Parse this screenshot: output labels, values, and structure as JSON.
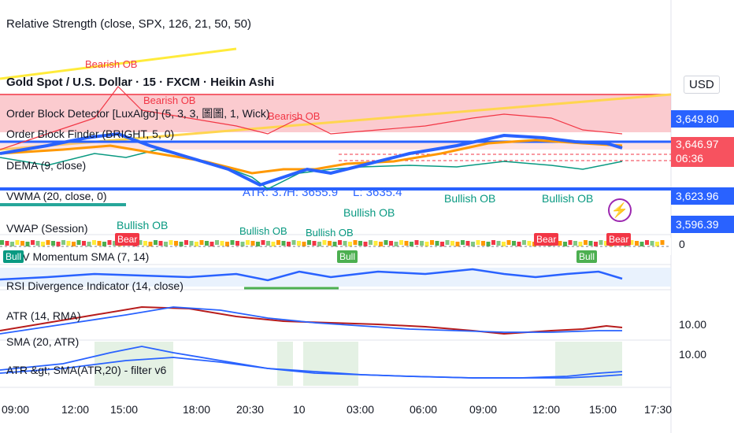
{
  "header": {
    "relative_strength": "Relative Strength (close, SPX, 126, 21, 50, 50)",
    "symbol": "Gold Spot / U.S. Dollar · 15 · FXCM · Heikin Ashi",
    "currency": "USD"
  },
  "indicators": {
    "order_block_luxalgo": "Order Block Detector [LuxAlgo] (5, 3, 3, 圖圖, 1, Wick)",
    "order_block_finder": "Order Block Finder (BRIGHT, 5, 0)",
    "dema": "DEMA (9, close)",
    "vwma": "VWMA (20, close, 0)",
    "vwap": "VWAP (Session)",
    "obv": "OBV Momentum SMA (7, 14)",
    "rsi_div": "RSI Divergence Indicator (14, close)",
    "atr": "ATR (14, RMA)",
    "sma_atr": "SMA (20, ATR)",
    "atr_filter": "ATR &gt; SMA(ATR,20) - filter v6"
  },
  "price_scale": {
    "p1": "3,649.80",
    "p2": "3,646.97",
    "countdown": "06:36",
    "p3": "3,623.96",
    "p4": "3,596.39",
    "zero": "0",
    "atr1": "10.00",
    "atr2": "10.00"
  },
  "annotations": {
    "bearish_ob_1": "Bearish OB",
    "bearish_ob_2": "Bearish OB",
    "bearish_ob_3": "Bearish OB",
    "bullish_ob_1": "Bullish OB",
    "bullish_ob_2": "Bullish OB",
    "bullish_ob_3": "Bullish OB",
    "bullish_ob_4": "Bullish OB",
    "bullish_ob_5": "Bullish OB",
    "bullish_ob_6": "Bullish OB",
    "atr_label": "ATR: 3.7",
    "high_label": "H: 3655.9",
    "low_label": "L: 3635.4",
    "bear_tag": "Bear",
    "bull_tag": "Bull",
    "left_cut": "Bull"
  },
  "time_axis": [
    "09:00",
    "12:00",
    "15:00",
    "18:00",
    "20:30",
    "10",
    "03:00",
    "06:00",
    "09:00",
    "12:00",
    "15:00",
    "17:30"
  ],
  "colors": {
    "bear_red": "#f23645",
    "bull_green": "#089981",
    "blue_line": "#2962ff",
    "price_red": "#f7525f",
    "purple": "#9c27b0"
  },
  "icons": {
    "lightning": "lightning-icon"
  }
}
